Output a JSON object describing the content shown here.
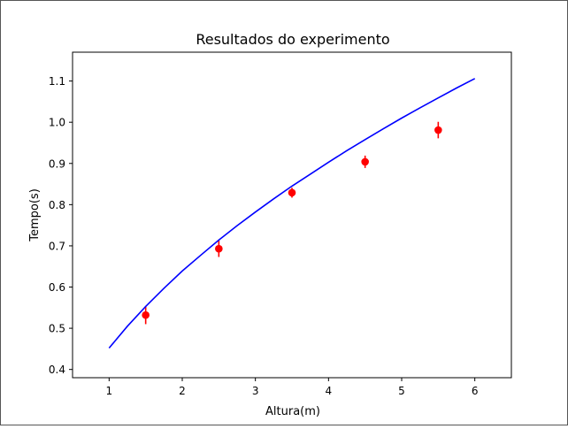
{
  "chart_data": {
    "type": "scatter",
    "title": "Resultados do experimento",
    "xlabel": "Altura(m)",
    "ylabel": "Tempo(s)",
    "xlim": [
      0.5,
      6.5
    ],
    "ylim": [
      0.38,
      1.17
    ],
    "grid": false,
    "x_ticks": [
      1,
      2,
      3,
      4,
      5,
      6
    ],
    "y_ticks": [
      0.4,
      0.5,
      0.6,
      0.7,
      0.8,
      0.9,
      1.0,
      1.1
    ],
    "x_tick_labels": [
      "1",
      "2",
      "3",
      "4",
      "5",
      "6"
    ],
    "y_tick_labels": [
      "0.4",
      "0.5",
      "0.6",
      "0.7",
      "0.8",
      "0.9",
      "1.0",
      "1.1"
    ],
    "series": [
      {
        "kind": "errorbar",
        "color": "#ff0000",
        "x": [
          1.5,
          2.5,
          3.5,
          4.5,
          5.5
        ],
        "y": [
          0.532,
          0.693,
          0.829,
          0.904,
          0.981
        ],
        "yerr": [
          0.022,
          0.02,
          0.012,
          0.015,
          0.02
        ]
      },
      {
        "kind": "line",
        "color": "#0000ff",
        "x": [
          1.0,
          1.25,
          1.5,
          1.75,
          2.0,
          2.25,
          2.5,
          2.75,
          3.0,
          3.25,
          3.5,
          3.75,
          4.0,
          4.25,
          4.5,
          4.75,
          5.0,
          5.25,
          5.5,
          5.75,
          6.0
        ],
        "y": [
          0.452,
          0.505,
          0.553,
          0.597,
          0.639,
          0.677,
          0.714,
          0.749,
          0.782,
          0.814,
          0.845,
          0.874,
          0.903,
          0.931,
          0.958,
          0.984,
          1.01,
          1.035,
          1.059,
          1.083,
          1.106
        ]
      }
    ]
  }
}
